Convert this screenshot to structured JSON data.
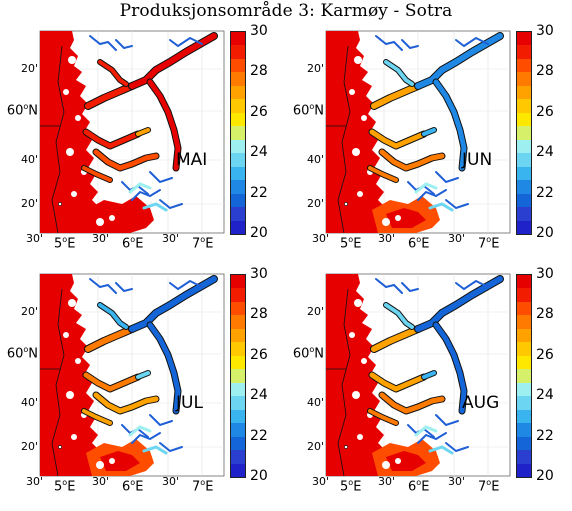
{
  "title": "Produksjonsområde 3: Karmøy - Sotra",
  "lat_labels": [
    "20'",
    "60ºN",
    "40'",
    "20'"
  ],
  "lon_labels": [
    "30'",
    "5ºE",
    "30'",
    "6ºE",
    "30'",
    "7ºE"
  ],
  "colorbar": {
    "ticks": [
      "30",
      "28",
      "26",
      "24",
      "22",
      "20"
    ],
    "colors": [
      "#e60000",
      "#f21d00",
      "#ff4d00",
      "#ff7a00",
      "#ffa200",
      "#ffc800",
      "#ffe800",
      "#d6f06a",
      "#9ef0f0",
      "#6cd6f2",
      "#3ab4ee",
      "#1f88e5",
      "#1466d8",
      "#2a3ed0",
      "#1e22c8"
    ]
  },
  "panels": [
    {
      "month": "MAI"
    },
    {
      "month": "JUN"
    },
    {
      "month": "JUL"
    },
    {
      "month": "AUG"
    }
  ]
}
